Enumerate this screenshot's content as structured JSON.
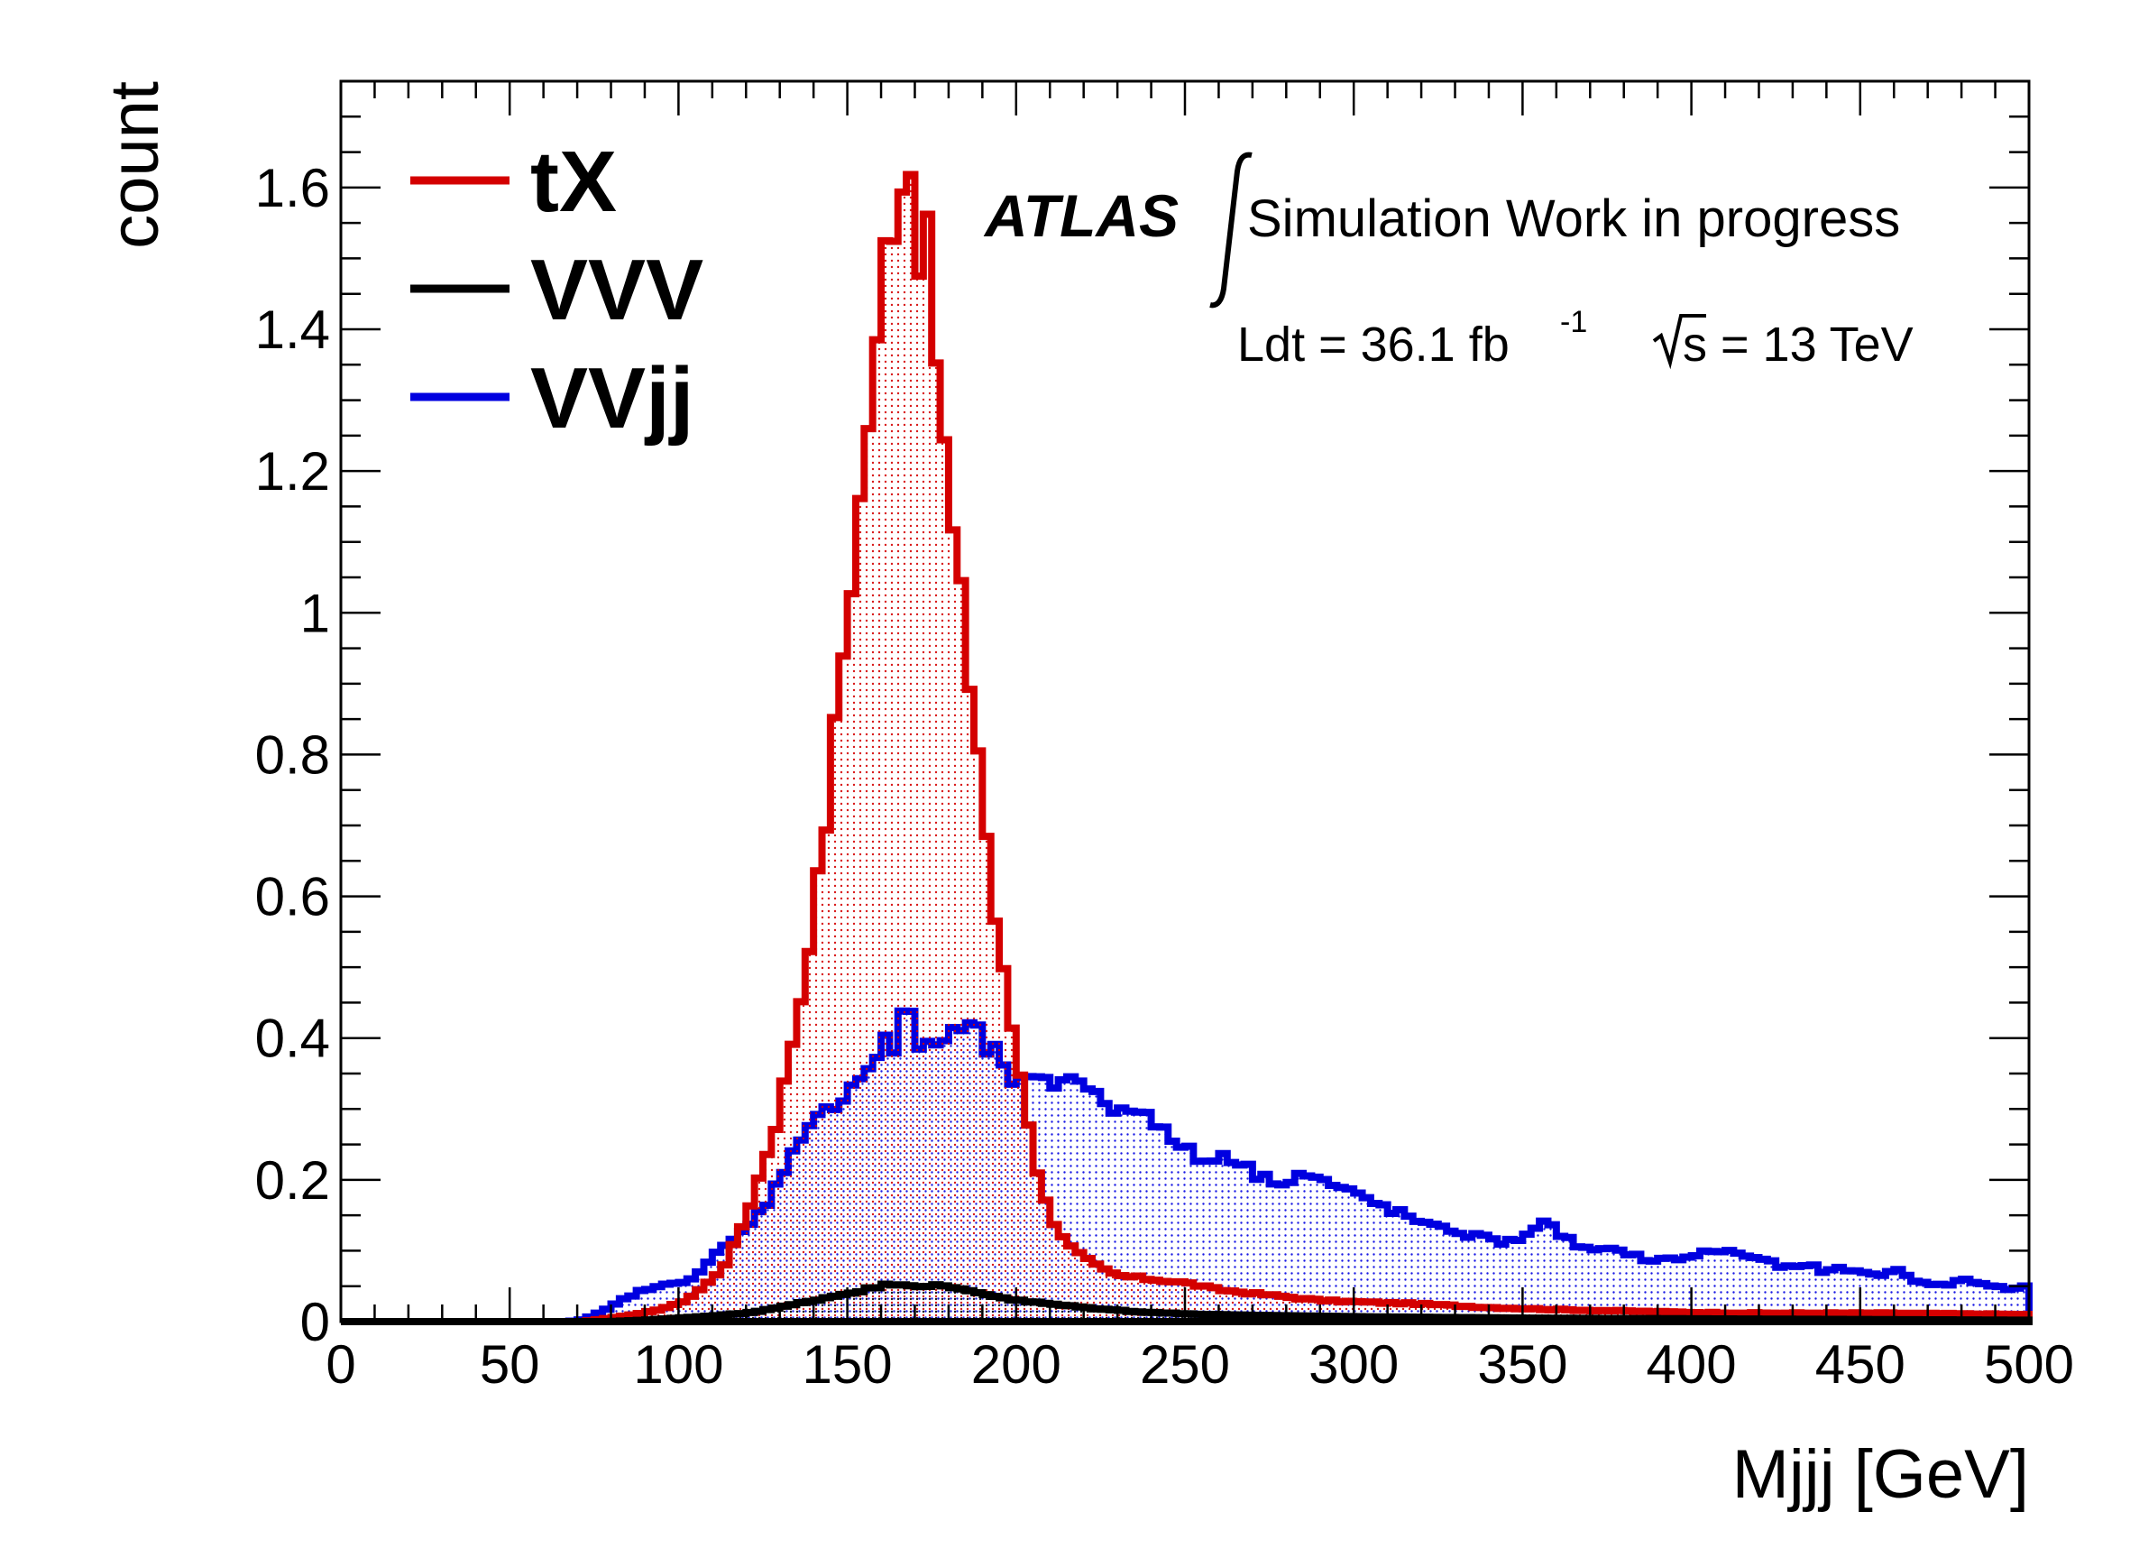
{
  "chart_data": {
    "type": "area",
    "xlabel": "Mjjj [GeV]",
    "ylabel": "count",
    "xlim": [
      0,
      500
    ],
    "ylim": [
      0,
      1.75
    ],
    "x_ticks": [
      "0",
      "50",
      "100",
      "150",
      "200",
      "250",
      "300",
      "350",
      "400",
      "450",
      "500"
    ],
    "y_ticks": [
      "0",
      "0.2",
      "0.4",
      "0.6",
      "0.8",
      "1",
      "1.2",
      "1.4",
      "1.6"
    ],
    "grid": false,
    "legend_position": "top-left",
    "annotations": {
      "experiment": "ATLAS",
      "status": "Simulation Work in progress",
      "lumi_label": "Ldt = 36.1 fb",
      "lumi_exp": "-1",
      "energy_label": "s = 13 TeV"
    },
    "bin_edges_note": "x values are bin centers, bin width 2.5 GeV",
    "series": [
      {
        "name": "tX",
        "color": "#d40000",
        "points": [
          [
            0,
            0
          ],
          [
            72,
            0
          ],
          [
            80,
            0.005
          ],
          [
            90,
            0.012
          ],
          [
            100,
            0.025
          ],
          [
            105,
            0.04
          ],
          [
            110,
            0.06
          ],
          [
            115,
            0.09
          ],
          [
            120,
            0.15
          ],
          [
            125,
            0.22
          ],
          [
            130,
            0.3
          ],
          [
            133,
            0.38
          ],
          [
            136,
            0.45
          ],
          [
            138,
            0.52
          ],
          [
            140,
            0.58
          ],
          [
            143,
            0.67
          ],
          [
            145,
            0.78
          ],
          [
            148,
            0.9
          ],
          [
            150,
            1.02
          ],
          [
            153,
            1.1
          ],
          [
            155,
            1.25
          ],
          [
            158,
            1.31
          ],
          [
            160,
            1.45
          ],
          [
            162,
            1.55
          ],
          [
            164,
            1.58
          ],
          [
            166,
            1.63
          ],
          [
            168,
            1.68
          ],
          [
            170,
            1.55
          ],
          [
            172,
            1.52
          ],
          [
            174,
            1.5
          ],
          [
            176,
            1.38
          ],
          [
            178,
            1.28
          ],
          [
            180,
            1.15
          ],
          [
            183,
            1.05
          ],
          [
            185,
            0.95
          ],
          [
            188,
            0.85
          ],
          [
            190,
            0.75
          ],
          [
            193,
            0.6
          ],
          [
            195,
            0.52
          ],
          [
            198,
            0.44
          ],
          [
            200,
            0.38
          ],
          [
            203,
            0.31
          ],
          [
            205,
            0.24
          ],
          [
            208,
            0.18
          ],
          [
            210,
            0.15
          ],
          [
            213,
            0.13
          ],
          [
            215,
            0.11
          ],
          [
            220,
            0.09
          ],
          [
            225,
            0.075
          ],
          [
            230,
            0.065
          ],
          [
            240,
            0.06
          ],
          [
            250,
            0.055
          ],
          [
            260,
            0.045
          ],
          [
            270,
            0.04
          ],
          [
            280,
            0.035
          ],
          [
            290,
            0.03
          ],
          [
            300,
            0.028
          ],
          [
            320,
            0.025
          ],
          [
            340,
            0.02
          ],
          [
            360,
            0.017
          ],
          [
            380,
            0.015
          ],
          [
            400,
            0.013
          ],
          [
            420,
            0.012
          ],
          [
            440,
            0.012
          ],
          [
            460,
            0.012
          ],
          [
            480,
            0.011
          ],
          [
            500,
            0.01
          ]
        ]
      },
      {
        "name": "VVV",
        "color": "#000000",
        "points": [
          [
            0,
            0
          ],
          [
            80,
            0
          ],
          [
            90,
            0.002
          ],
          [
            100,
            0.005
          ],
          [
            110,
            0.008
          ],
          [
            120,
            0.012
          ],
          [
            130,
            0.02
          ],
          [
            140,
            0.03
          ],
          [
            150,
            0.04
          ],
          [
            160,
            0.05
          ],
          [
            165,
            0.055
          ],
          [
            170,
            0.05
          ],
          [
            175,
            0.052
          ],
          [
            180,
            0.048
          ],
          [
            185,
            0.045
          ],
          [
            190,
            0.04
          ],
          [
            195,
            0.035
          ],
          [
            200,
            0.03
          ],
          [
            210,
            0.025
          ],
          [
            220,
            0.02
          ],
          [
            230,
            0.016
          ],
          [
            240,
            0.013
          ],
          [
            250,
            0.011
          ],
          [
            270,
            0.009
          ],
          [
            300,
            0.007
          ],
          [
            350,
            0.005
          ],
          [
            400,
            0.004
          ],
          [
            450,
            0.003
          ],
          [
            500,
            0.002
          ]
        ]
      },
      {
        "name": "VVjj",
        "color": "#0000e0",
        "points": [
          [
            0,
            0
          ],
          [
            68,
            0
          ],
          [
            72,
            0.003
          ],
          [
            78,
            0.015
          ],
          [
            85,
            0.035
          ],
          [
            90,
            0.045
          ],
          [
            95,
            0.05
          ],
          [
            100,
            0.055
          ],
          [
            105,
            0.065
          ],
          [
            110,
            0.09
          ],
          [
            115,
            0.11
          ],
          [
            120,
            0.13
          ],
          [
            125,
            0.16
          ],
          [
            130,
            0.2
          ],
          [
            135,
            0.26
          ],
          [
            140,
            0.28
          ],
          [
            145,
            0.3
          ],
          [
            150,
            0.33
          ],
          [
            155,
            0.35
          ],
          [
            158,
            0.37
          ],
          [
            160,
            0.39
          ],
          [
            162,
            0.4
          ],
          [
            164,
            0.38
          ],
          [
            166,
            0.42
          ],
          [
            168,
            0.45
          ],
          [
            170,
            0.41
          ],
          [
            172,
            0.38
          ],
          [
            175,
            0.4
          ],
          [
            178,
            0.39
          ],
          [
            180,
            0.4
          ],
          [
            183,
            0.41
          ],
          [
            185,
            0.42
          ],
          [
            188,
            0.41
          ],
          [
            190,
            0.39
          ],
          [
            193,
            0.38
          ],
          [
            195,
            0.37
          ],
          [
            198,
            0.35
          ],
          [
            200,
            0.33
          ],
          [
            205,
            0.34
          ],
          [
            210,
            0.33
          ],
          [
            215,
            0.35
          ],
          [
            220,
            0.34
          ],
          [
            225,
            0.31
          ],
          [
            230,
            0.3
          ],
          [
            235,
            0.31
          ],
          [
            240,
            0.28
          ],
          [
            245,
            0.26
          ],
          [
            250,
            0.25
          ],
          [
            255,
            0.22
          ],
          [
            260,
            0.24
          ],
          [
            265,
            0.23
          ],
          [
            270,
            0.21
          ],
          [
            275,
            0.2
          ],
          [
            280,
            0.2
          ],
          [
            285,
            0.21
          ],
          [
            290,
            0.2
          ],
          [
            295,
            0.19
          ],
          [
            300,
            0.18
          ],
          [
            305,
            0.17
          ],
          [
            310,
            0.16
          ],
          [
            315,
            0.15
          ],
          [
            320,
            0.14
          ],
          [
            325,
            0.13
          ],
          [
            330,
            0.13
          ],
          [
            335,
            0.12
          ],
          [
            340,
            0.12
          ],
          [
            345,
            0.11
          ],
          [
            350,
            0.12
          ],
          [
            355,
            0.14
          ],
          [
            360,
            0.13
          ],
          [
            365,
            0.11
          ],
          [
            370,
            0.1
          ],
          [
            375,
            0.1
          ],
          [
            380,
            0.1
          ],
          [
            385,
            0.09
          ],
          [
            390,
            0.085
          ],
          [
            395,
            0.09
          ],
          [
            400,
            0.09
          ],
          [
            405,
            0.1
          ],
          [
            410,
            0.1
          ],
          [
            415,
            0.095
          ],
          [
            420,
            0.09
          ],
          [
            425,
            0.08
          ],
          [
            430,
            0.075
          ],
          [
            435,
            0.08
          ],
          [
            440,
            0.07
          ],
          [
            445,
            0.075
          ],
          [
            450,
            0.07
          ],
          [
            455,
            0.065
          ],
          [
            460,
            0.075
          ],
          [
            465,
            0.06
          ],
          [
            470,
            0.055
          ],
          [
            475,
            0.05
          ],
          [
            480,
            0.06
          ],
          [
            485,
            0.055
          ],
          [
            490,
            0.05
          ],
          [
            495,
            0.045
          ],
          [
            500,
            0.05
          ]
        ]
      }
    ]
  }
}
